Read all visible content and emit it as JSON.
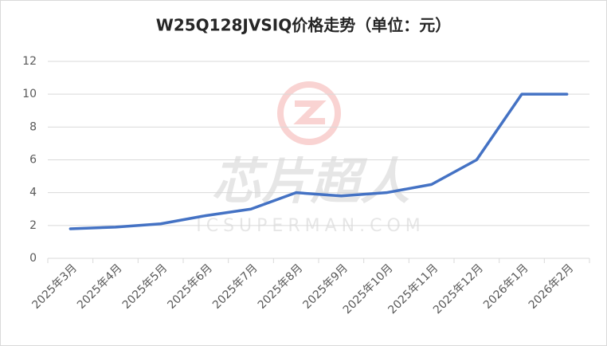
{
  "chart_data": {
    "type": "line",
    "title": "W25Q128JVSIQ价格走势（单位：元）",
    "categories": [
      "2025年3月",
      "2025年4月",
      "2025年5月",
      "2025年6月",
      "2025年7月",
      "2025年8月",
      "2025年9月",
      "2025年10月",
      "2025年11月",
      "2025年12月",
      "2026年1月",
      "2026年2月"
    ],
    "series": [
      {
        "color": "#4472c4",
        "values": [
          1.8,
          1.9,
          2.1,
          2.6,
          3.0,
          4.0,
          3.8,
          4.0,
          4.5,
          6.0,
          10.0,
          10.0
        ]
      }
    ],
    "ylim": [
      0,
      12
    ],
    "yticks": [
      0,
      2,
      4,
      6,
      8,
      10,
      12
    ],
    "grid": true
  },
  "watermark": {
    "text": "芯片超人",
    "subtext": "ICSUPERMAN.COM"
  }
}
